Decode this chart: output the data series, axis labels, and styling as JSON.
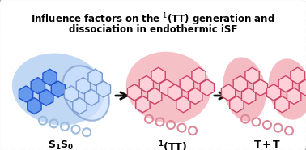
{
  "title_fontsize": 8.5,
  "bg_color": "#ffffff",
  "border_color": "#b0b0b0",
  "blue_glow": "#a0c4f0",
  "blue_dark": "#2255cc",
  "blue_mid": "#6699ee",
  "blue_light": "#cce0ff",
  "blue_outline": "#7799cc",
  "red_glow": "#f0a0a8",
  "red_dark": "#cc4466",
  "red_mid": "#ee8899",
  "red_light": "#ffd0d8",
  "label_fontsize": 9,
  "arrow_color": "#111111",
  "chain_blue": "#99bbdd",
  "chain_red": "#dd8899"
}
